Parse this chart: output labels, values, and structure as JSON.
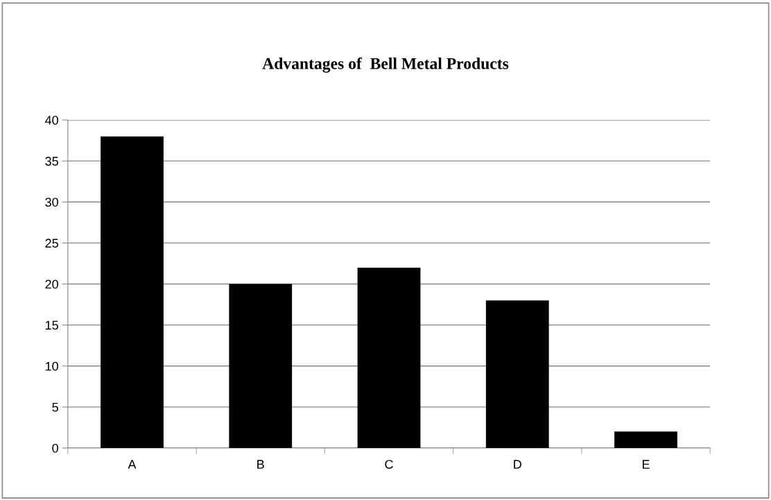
{
  "chart_data": {
    "type": "bar",
    "title": "Advantages of  Bell Metal Products",
    "categories": [
      "A",
      "B",
      "C",
      "D",
      "E"
    ],
    "values": [
      38,
      20,
      22,
      18,
      2
    ],
    "color": "#000000",
    "ylim": [
      0,
      40
    ],
    "yticks": [
      0,
      5,
      10,
      15,
      20,
      25,
      30,
      35,
      40
    ],
    "grid": "y",
    "legend": false
  }
}
